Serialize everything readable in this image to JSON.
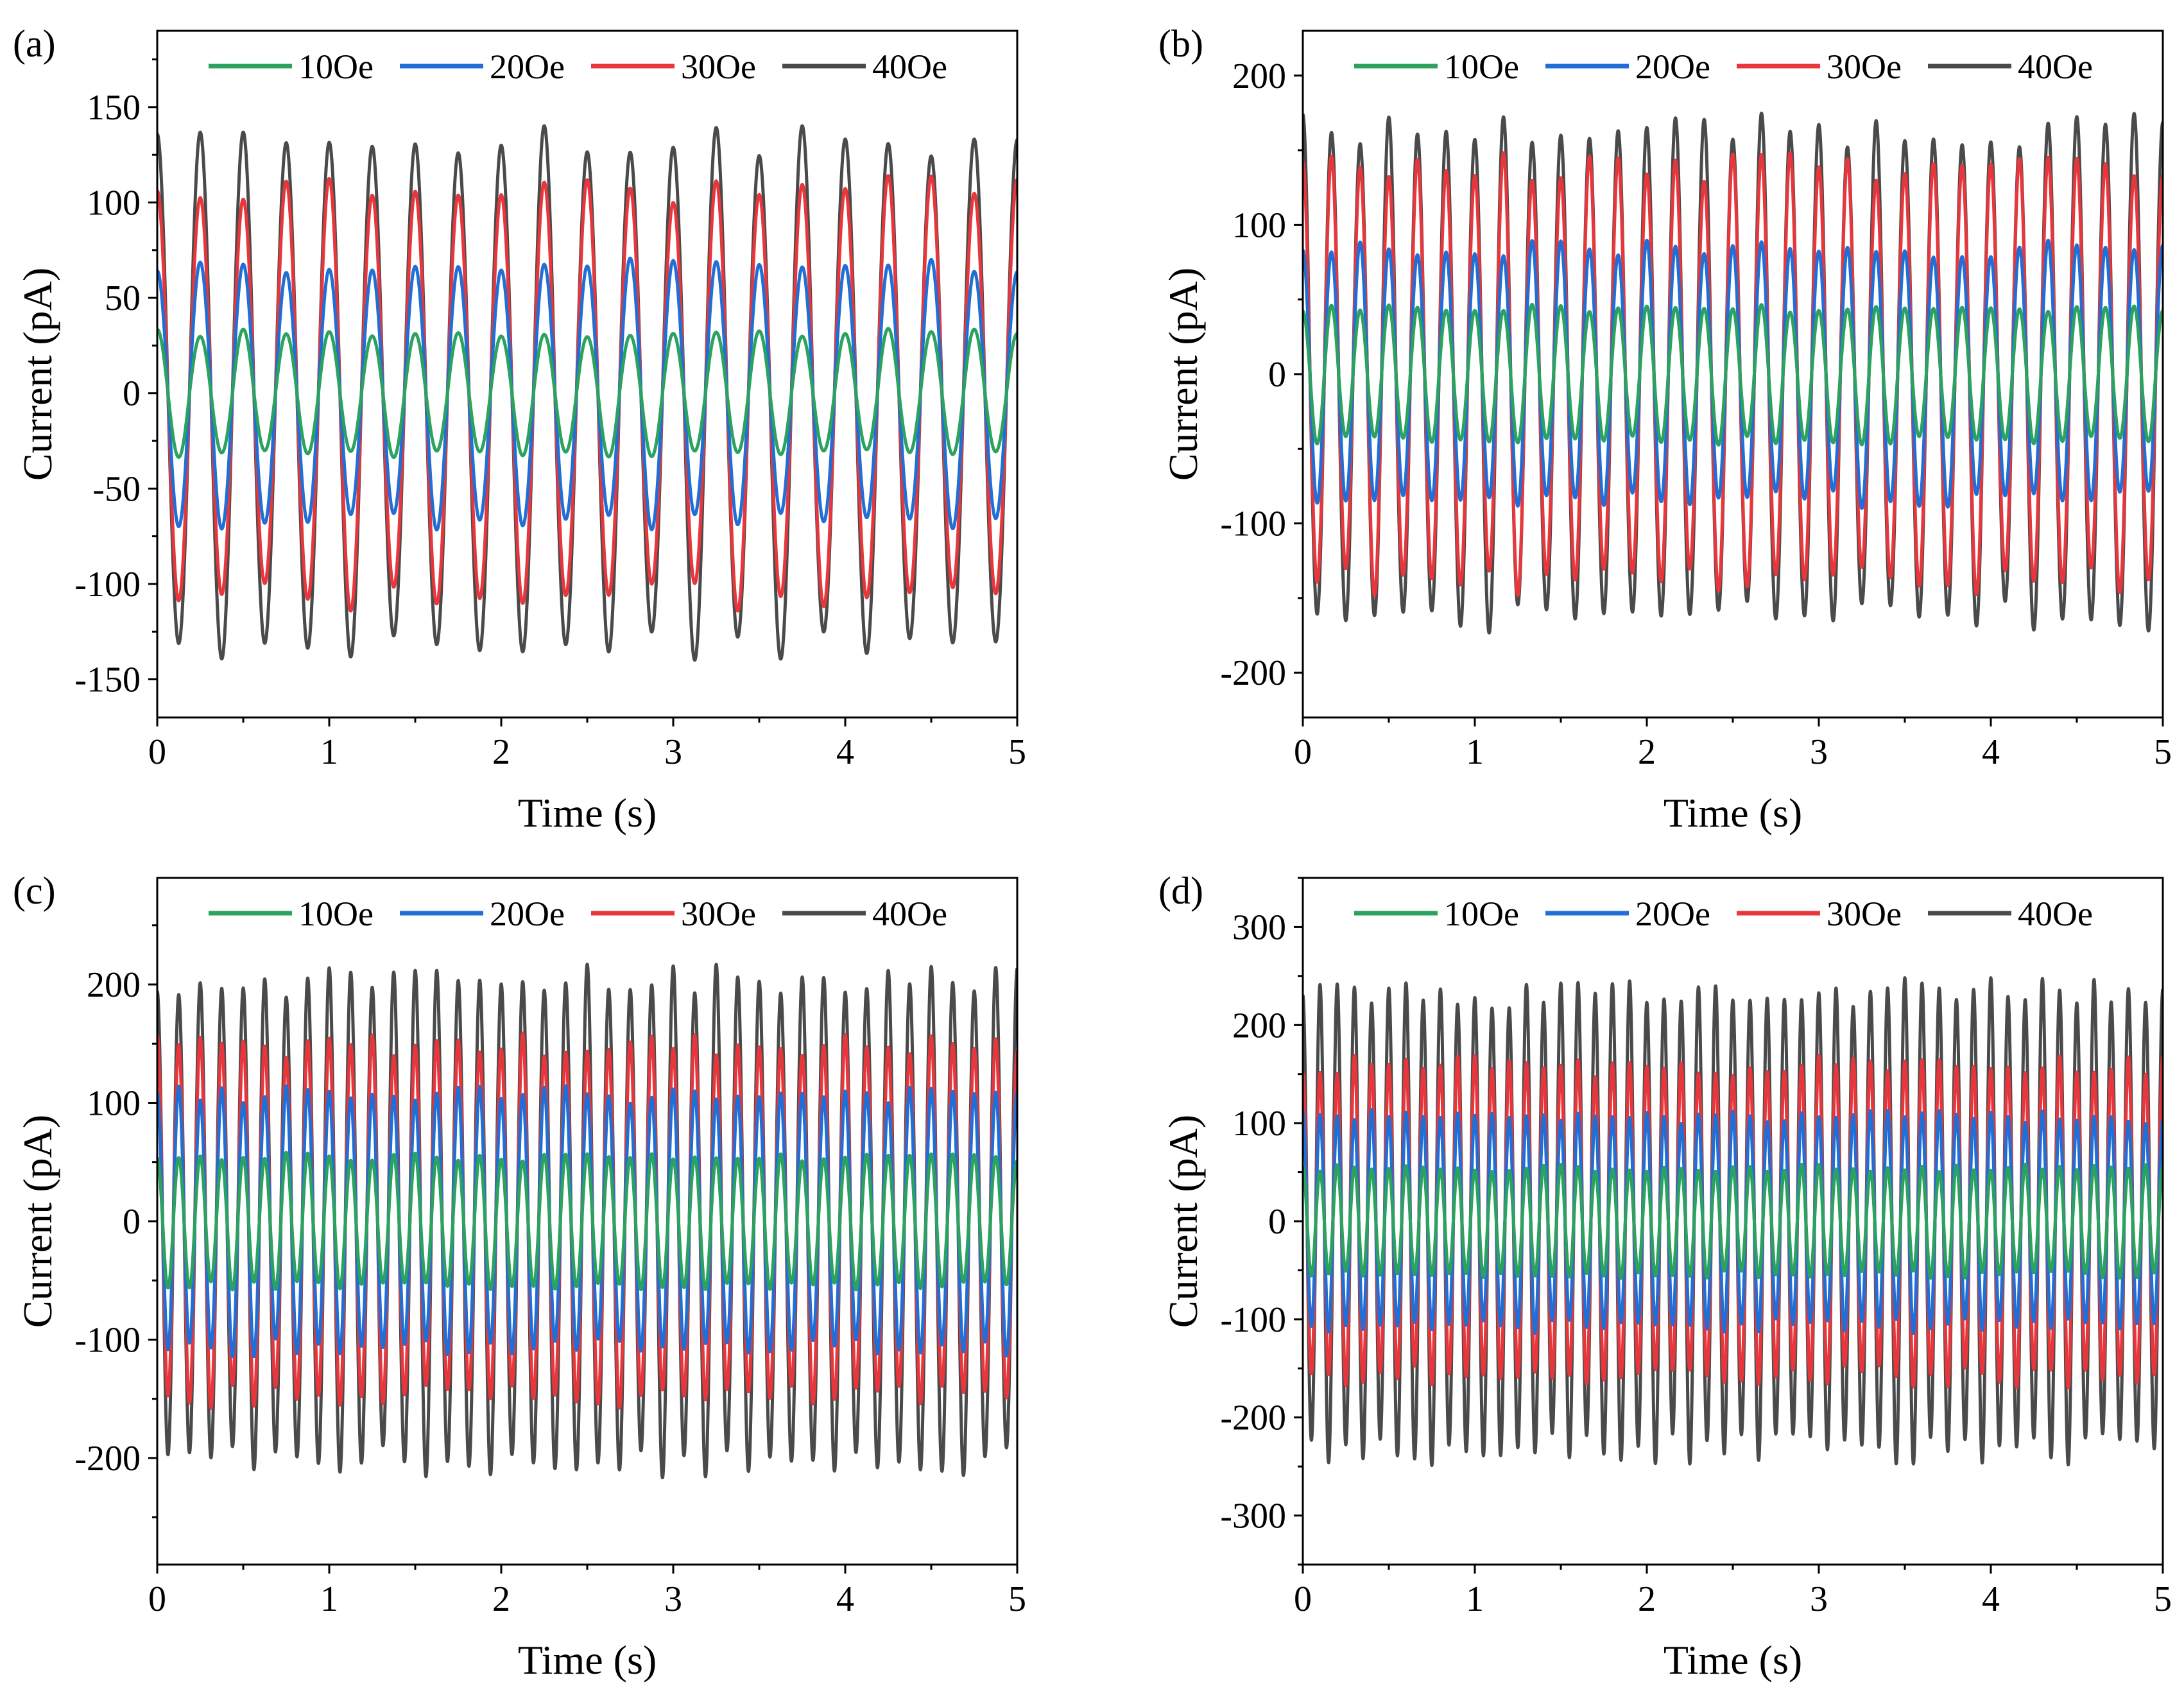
{
  "chart_data": [
    {
      "type": "line",
      "panel_label": "(a)",
      "xlabel": "Time (s)",
      "ylabel": "Current (pA)",
      "xlim": [
        0,
        5
      ],
      "ylim": [
        -170,
        190
      ],
      "xticks": [
        0,
        1,
        2,
        3,
        4,
        5
      ],
      "yticks": [
        -150,
        -100,
        -50,
        0,
        50,
        100,
        150
      ],
      "legend_position": "top",
      "frequency_hz": 4,
      "series": [
        {
          "name": "10Oe",
          "color": "#2ca25f",
          "amplitude": 32
        },
        {
          "name": "20Oe",
          "color": "#1f6fd6",
          "amplitude": 68
        },
        {
          "name": "30Oe",
          "color": "#e8373c",
          "amplitude": 108
        },
        {
          "name": "40Oe",
          "color": "#4a4a4a",
          "amplitude": 133
        }
      ]
    },
    {
      "type": "line",
      "panel_label": "(b)",
      "xlabel": "Time (s)",
      "ylabel": "Current (pA)",
      "xlim": [
        0,
        5
      ],
      "ylim": [
        -230,
        230
      ],
      "xticks": [
        0,
        1,
        2,
        3,
        4,
        5
      ],
      "yticks": [
        -200,
        -100,
        0,
        100,
        200
      ],
      "legend_position": "top",
      "frequency_hz": 6,
      "series": [
        {
          "name": "10Oe",
          "color": "#2ca25f",
          "amplitude": 45
        },
        {
          "name": "20Oe",
          "color": "#1f6fd6",
          "amplitude": 85
        },
        {
          "name": "30Oe",
          "color": "#e8373c",
          "amplitude": 140
        },
        {
          "name": "40Oe",
          "color": "#4a4a4a",
          "amplitude": 165
        }
      ]
    },
    {
      "type": "line",
      "panel_label": "(c)",
      "xlabel": "Time (s)",
      "ylabel": "Current (pA)",
      "xlim": [
        0,
        5
      ],
      "ylim": [
        -290,
        290
      ],
      "xticks": [
        0,
        1,
        2,
        3,
        4,
        5
      ],
      "yticks": [
        -200,
        -100,
        0,
        100,
        200
      ],
      "legend_position": "top",
      "frequency_hz": 8,
      "series": [
        {
          "name": "10Oe",
          "color": "#2ca25f",
          "amplitude": 55
        },
        {
          "name": "20Oe",
          "color": "#1f6fd6",
          "amplitude": 108
        },
        {
          "name": "30Oe",
          "color": "#e8373c",
          "amplitude": 150
        },
        {
          "name": "40Oe",
          "color": "#4a4a4a",
          "amplitude": 205
        }
      ]
    },
    {
      "type": "line",
      "panel_label": "(d)",
      "xlabel": "Time (s)",
      "ylabel": "Current (pA)",
      "xlim": [
        0,
        5
      ],
      "ylim": [
        -350,
        350
      ],
      "xticks": [
        0,
        1,
        2,
        3,
        4,
        5
      ],
      "yticks": [
        -300,
        -200,
        -100,
        0,
        100,
        200,
        300
      ],
      "legend_position": "top",
      "frequency_hz": 10,
      "series": [
        {
          "name": "10Oe",
          "color": "#2ca25f",
          "amplitude": 55
        },
        {
          "name": "20Oe",
          "color": "#1f6fd6",
          "amplitude": 108
        },
        {
          "name": "30Oe",
          "color": "#e8373c",
          "amplitude": 160
        },
        {
          "name": "40Oe",
          "color": "#4a4a4a",
          "amplitude": 235
        }
      ]
    }
  ]
}
